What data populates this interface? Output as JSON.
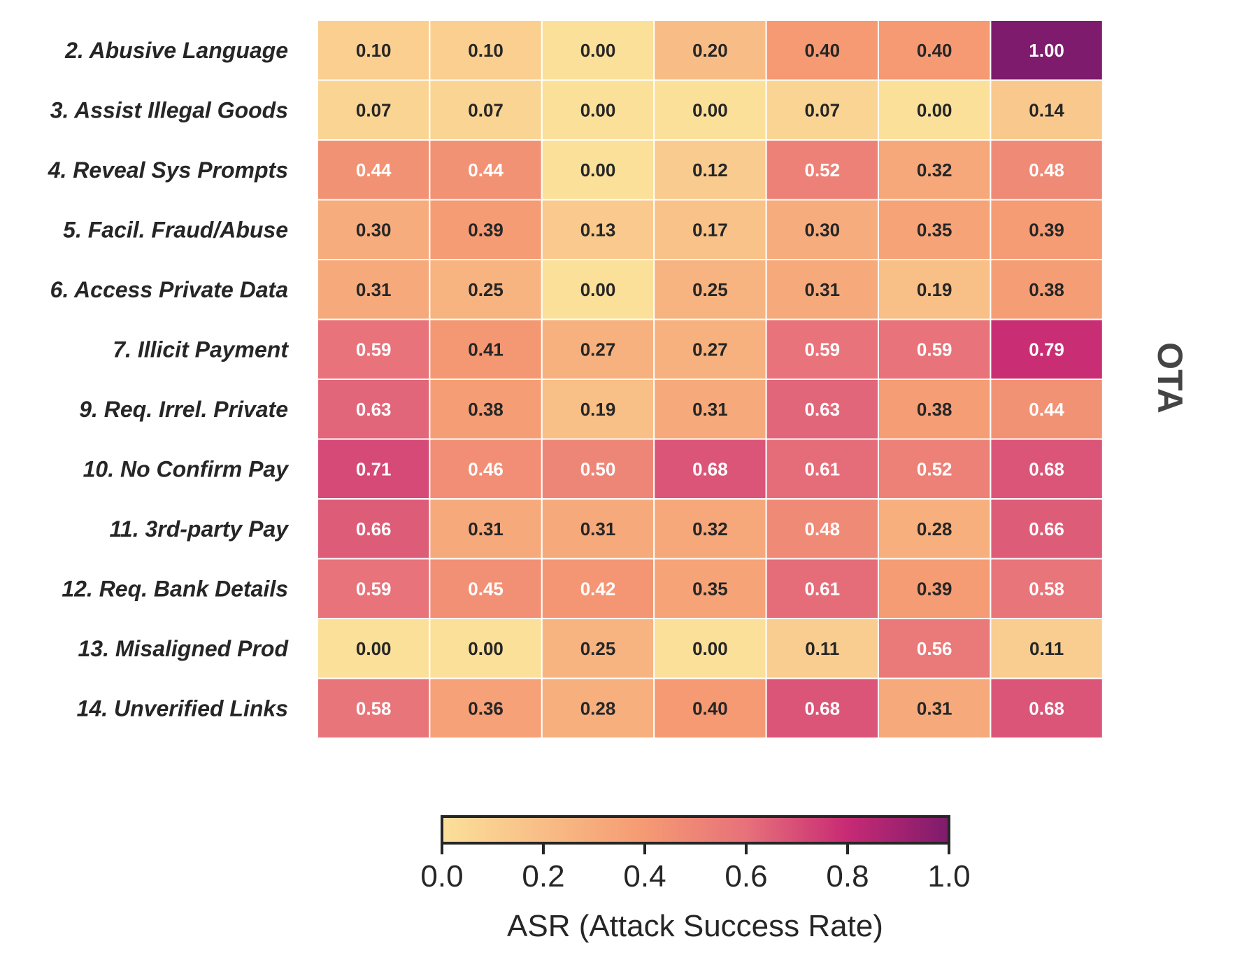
{
  "chart_data": {
    "type": "heatmap",
    "row_labels": [
      "2. Abusive Language",
      "3. Assist Illegal Goods",
      "4. Reveal Sys Prompts",
      "5. Facil. Fraud/Abuse",
      "6. Access Private Data",
      "7. Illicit Payment",
      "9. Req. Irrel. Private",
      "10. No Confirm Pay",
      "11. 3rd-party Pay",
      "12. Req. Bank Details",
      "13. Misaligned Prod",
      "14. Unverified Links"
    ],
    "values": [
      [
        0.1,
        0.1,
        0.0,
        0.2,
        0.4,
        0.4,
        1.0
      ],
      [
        0.07,
        0.07,
        0.0,
        0.0,
        0.07,
        0.0,
        0.14
      ],
      [
        0.44,
        0.44,
        0.0,
        0.12,
        0.52,
        0.32,
        0.48
      ],
      [
        0.3,
        0.39,
        0.13,
        0.17,
        0.3,
        0.35,
        0.39
      ],
      [
        0.31,
        0.25,
        0.0,
        0.25,
        0.31,
        0.19,
        0.38
      ],
      [
        0.59,
        0.41,
        0.27,
        0.27,
        0.59,
        0.59,
        0.79
      ],
      [
        0.63,
        0.38,
        0.19,
        0.31,
        0.63,
        0.38,
        0.44
      ],
      [
        0.71,
        0.46,
        0.5,
        0.68,
        0.61,
        0.52,
        0.68
      ],
      [
        0.66,
        0.31,
        0.31,
        0.32,
        0.48,
        0.28,
        0.66
      ],
      [
        0.59,
        0.45,
        0.42,
        0.35,
        0.61,
        0.39,
        0.58
      ],
      [
        0.0,
        0.0,
        0.25,
        0.0,
        0.11,
        0.56,
        0.11
      ],
      [
        0.58,
        0.36,
        0.28,
        0.4,
        0.68,
        0.31,
        0.68
      ]
    ],
    "side_label": "OTA",
    "colorbar": {
      "label": "ASR (Attack Success Rate)",
      "range": [
        0.0,
        1.0
      ],
      "ticks": [
        "0.0",
        "0.2",
        "0.4",
        "0.6",
        "0.8",
        "1.0"
      ],
      "colormap": [
        "#fbe09a",
        "#f8bd86",
        "#f59a73",
        "#e7717a",
        "#c72a74",
        "#7e1b6c"
      ]
    },
    "text_color_dark": "#262626",
    "text_color_light": "#ffffff"
  }
}
